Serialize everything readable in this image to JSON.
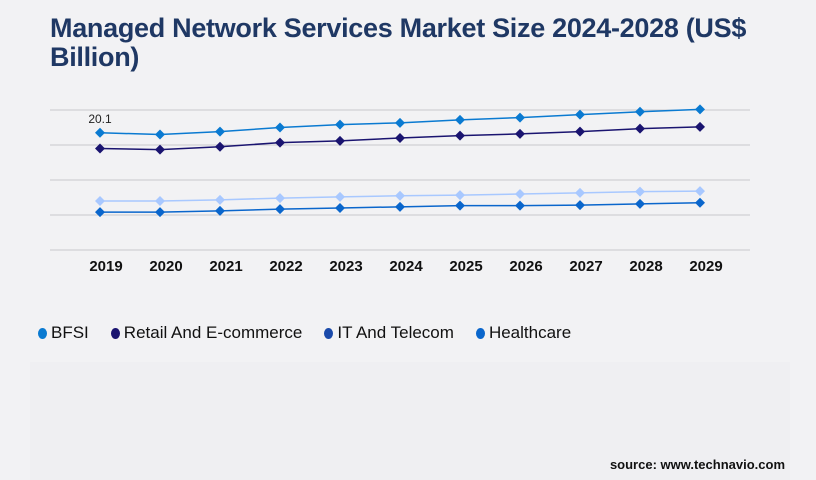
{
  "title": "Managed Network Services Market Size 2024-2028 (US$ Billion)",
  "source": "source: www.technavio.com",
  "chart_data": {
    "type": "line",
    "title": "Managed Network Services Market Size 2024-2028 (US$ Billion)",
    "categories": [
      "2019",
      "2020",
      "2021",
      "2022",
      "2023",
      "2024",
      "2025",
      "2026",
      "2027",
      "2028",
      "2029"
    ],
    "ylim": [
      0,
      24
    ],
    "grid": true,
    "legend": "bottom-left",
    "annotations": [
      {
        "series": "BFSI",
        "category": "2019",
        "label": "20.1"
      }
    ],
    "series": [
      {
        "name": "BFSI",
        "color": "#0a7ad1",
        "values": [
          20.1,
          19.8,
          20.3,
          21.0,
          21.5,
          21.8,
          22.3,
          22.7,
          23.2,
          23.7,
          24.1
        ]
      },
      {
        "name": "Retail And E-commerce",
        "color": "#1a1470",
        "values": [
          17.4,
          17.2,
          17.7,
          18.4,
          18.7,
          19.2,
          19.6,
          19.9,
          20.3,
          20.8,
          21.1
        ]
      },
      {
        "name": "IT And Telecom",
        "color": "#a8c8ff",
        "legend_color": "#1a4aaa",
        "values": [
          8.4,
          8.4,
          8.6,
          8.9,
          9.1,
          9.3,
          9.4,
          9.6,
          9.8,
          10.0,
          10.1
        ]
      },
      {
        "name": "Healthcare",
        "color": "#0a66cc",
        "values": [
          6.5,
          6.5,
          6.7,
          7.0,
          7.2,
          7.4,
          7.6,
          7.6,
          7.7,
          7.9,
          8.1
        ]
      }
    ]
  }
}
